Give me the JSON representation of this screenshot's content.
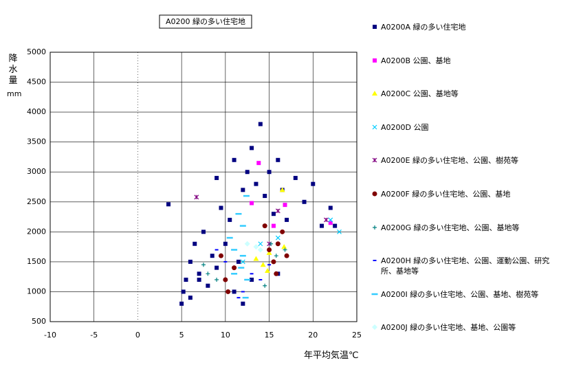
{
  "chart_data": {
    "type": "scatter",
    "title": "A0200 緑の多い住宅地",
    "x_label": "年平均気温℃",
    "y_label": "降水量",
    "y_unit": "mm",
    "xlim": [
      -10,
      25
    ],
    "xticks": [
      -10,
      -5,
      0,
      5,
      10,
      15,
      20,
      25
    ],
    "ylim": [
      500,
      5000
    ],
    "yticks": [
      500,
      1000,
      1500,
      2000,
      2500,
      3000,
      3500,
      4000,
      4500,
      5000
    ],
    "grid": true,
    "legend": "right",
    "series": [
      {
        "name": "A0200A 緑の多い住宅地",
        "color": "#000080",
        "marker": "square",
        "x": [
          3.5,
          5,
          5.2,
          5.5,
          6,
          6.5,
          7,
          7.5,
          8,
          8.5,
          9,
          9.5,
          9,
          10,
          10.5,
          11,
          11.5,
          12,
          12.5,
          13,
          13.5,
          14,
          14.5,
          15,
          15.5,
          16,
          16.5,
          17,
          18,
          19,
          20,
          21,
          22,
          22.5,
          6,
          7,
          11,
          12,
          13,
          16
        ],
        "values": [
          2460,
          800,
          1000,
          1200,
          1500,
          1800,
          1300,
          2000,
          1100,
          1600,
          1400,
          2400,
          2900,
          1800,
          2200,
          3200,
          1500,
          2700,
          3000,
          3400,
          2800,
          3800,
          2600,
          3000,
          2300,
          3200,
          2700,
          2200,
          2900,
          2500,
          2800,
          2100,
          2400,
          2100,
          900,
          1200,
          1000,
          800,
          1200,
          1300
        ]
      },
      {
        "name": "A0200B 公園、基地",
        "color": "#ff00ff",
        "marker": "square",
        "x": [
          13,
          13.8,
          16.8,
          15.5,
          22
        ],
        "values": [
          2480,
          3150,
          2450,
          2100,
          2150
        ]
      },
      {
        "name": "A0200C 公園、基地等",
        "color": "#ffff00",
        "marker": "triangle",
        "x": [
          13.5,
          14.3,
          15,
          16.5,
          16.7,
          14.8
        ],
        "values": [
          1550,
          1450,
          1650,
          2700,
          1750,
          1350
        ]
      },
      {
        "name": "A0200D 公園",
        "color": "#00ccff",
        "marker": "x",
        "x": [
          16,
          22,
          23,
          12,
          14
        ],
        "values": [
          1900,
          2200,
          2000,
          1500,
          1800
        ]
      },
      {
        "name": "A0200E 緑の多い住宅地、公園、樹苑等",
        "color": "#800080",
        "marker": "star",
        "x": [
          6.7,
          16,
          15,
          21.5
        ],
        "values": [
          2580,
          2350,
          1800,
          2200
        ]
      },
      {
        "name": "A0200F 緑の多い住宅地、公園、基地",
        "color": "#800000",
        "marker": "circle",
        "x": [
          9.5,
          10,
          10.3,
          11,
          14.5,
          15,
          15.5,
          16,
          16.5,
          15.8,
          17
        ],
        "values": [
          1600,
          1200,
          1000,
          1400,
          2100,
          1700,
          1500,
          1800,
          2000,
          1300,
          1600
        ]
      },
      {
        "name": "A0200G 緑の多い住宅地、公園、基地等",
        "color": "#008080",
        "marker": "plus",
        "x": [
          7.5,
          8,
          9,
          14.5,
          15.2,
          15.8,
          16.8
        ],
        "values": [
          1450,
          1300,
          1200,
          1100,
          1800,
          1600,
          1700
        ]
      },
      {
        "name": "A0200H 緑の多い住宅地、公園、運動公園、研究所、基地等",
        "color": "#0000ff",
        "marker": "dash",
        "x": [
          9,
          10,
          12,
          13,
          14,
          15,
          11.5
        ],
        "values": [
          1700,
          1500,
          1000,
          1300,
          1200,
          1450,
          900
        ]
      },
      {
        "name": "A0200I 緑の多い住宅地、公園、基地、樹苑等",
        "color": "#33ccff",
        "marker": "wide-dash",
        "x": [
          10.5,
          11,
          11.5,
          12,
          12.5,
          12,
          11.8,
          12.3,
          11,
          12.4
        ],
        "values": [
          1900,
          1700,
          2300,
          1600,
          1200,
          2100,
          1400,
          900,
          1300,
          2600
        ]
      },
      {
        "name": "A0200J 緑の多い住宅地、基地、公園等",
        "color": "#ccffff",
        "marker": "diamond",
        "x": [
          12.5,
          13.5,
          14
        ],
        "values": [
          1800,
          1750,
          1700
        ]
      }
    ]
  }
}
